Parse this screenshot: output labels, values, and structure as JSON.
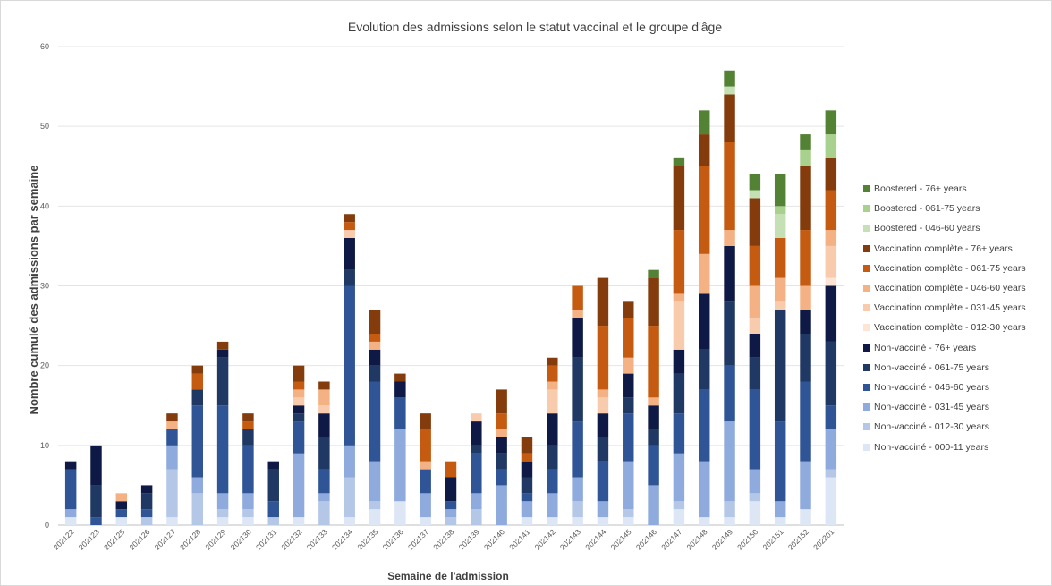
{
  "chart_data": {
    "type": "bar",
    "stacked": true,
    "title": "Evolution des admissions selon le statut vaccinal et le groupe d'âge",
    "xlabel": "Semaine de l'admission",
    "ylabel": "Nombre cumulé des admissions par semaine",
    "ylim": [
      0,
      60
    ],
    "yticks": [
      0,
      10,
      20,
      30,
      40,
      50,
      60
    ],
    "grid": true,
    "legend_position": "right",
    "categories": [
      "202122",
      "202123",
      "202125",
      "202126",
      "202127",
      "202128",
      "202129",
      "202130",
      "202131",
      "202132",
      "202133",
      "202134",
      "202135",
      "202136",
      "202137",
      "202138",
      "202139",
      "202140",
      "202141",
      "202142",
      "202143",
      "202144",
      "202145",
      "202146",
      "202147",
      "202148",
      "202149",
      "202150",
      "202151",
      "202152",
      "202201"
    ],
    "series": [
      {
        "name": "Non-vacciné - 000-11 years",
        "color": "#dce6f4",
        "values": [
          1,
          0,
          1,
          0,
          1,
          0,
          1,
          1,
          0,
          1,
          0,
          1,
          2,
          3,
          1,
          0,
          0,
          0,
          1,
          1,
          1,
          1,
          1,
          0,
          2,
          1,
          1,
          3,
          1,
          2,
          6
        ]
      },
      {
        "name": "Non-vacciné - 012-30 years",
        "color": "#b4c7e7",
        "values": [
          0,
          0,
          0,
          1,
          6,
          4,
          1,
          1,
          1,
          0,
          3,
          5,
          1,
          0,
          0,
          1,
          2,
          0,
          0,
          0,
          2,
          0,
          1,
          0,
          1,
          0,
          2,
          1,
          0,
          0,
          1
        ]
      },
      {
        "name": "Non-vacciné - 031-45 years",
        "color": "#8faadc",
        "values": [
          1,
          0,
          0,
          0,
          3,
          2,
          2,
          2,
          0,
          8,
          1,
          4,
          5,
          9,
          3,
          1,
          2,
          5,
          2,
          3,
          3,
          2,
          6,
          5,
          6,
          7,
          10,
          3,
          2,
          6,
          5
        ]
      },
      {
        "name": "Non-vacciné - 046-60 years",
        "color": "#2f5597",
        "values": [
          5,
          1,
          1,
          1,
          2,
          9,
          11,
          6,
          2,
          4,
          3,
          20,
          10,
          4,
          3,
          1,
          5,
          2,
          1,
          3,
          7,
          5,
          6,
          5,
          5,
          9,
          7,
          10,
          10,
          10,
          3
        ]
      },
      {
        "name": "Non-vacciné - 061-75 years",
        "color": "#203864",
        "values": [
          0,
          4,
          0,
          2,
          0,
          2,
          6,
          2,
          4,
          1,
          4,
          2,
          2,
          0,
          0,
          0,
          1,
          2,
          2,
          3,
          8,
          3,
          2,
          2,
          5,
          5,
          8,
          4,
          14,
          6,
          8
        ]
      },
      {
        "name": "Non-vacciné - 76+ years",
        "color": "#0e1a45",
        "values": [
          1,
          5,
          1,
          1,
          0,
          0,
          1,
          0,
          1,
          1,
          3,
          4,
          2,
          2,
          0,
          3,
          3,
          2,
          2,
          4,
          5,
          3,
          3,
          3,
          3,
          7,
          7,
          3,
          0,
          3,
          7
        ]
      },
      {
        "name": "Vaccination complète - 012-30 years",
        "color": "#fde4d4",
        "values": [
          0,
          0,
          0,
          0,
          0,
          0,
          0,
          0,
          0,
          0,
          0,
          0,
          0,
          0,
          0,
          0,
          0,
          0,
          0,
          0,
          0,
          0,
          0,
          0,
          0,
          0,
          0,
          0,
          0,
          0,
          1
        ]
      },
      {
        "name": "Vaccination complète - 031-45 years",
        "color": "#f8cbad",
        "values": [
          0,
          0,
          0,
          0,
          0,
          0,
          0,
          0,
          0,
          1,
          1,
          1,
          0,
          0,
          0,
          0,
          1,
          0,
          0,
          3,
          0,
          2,
          0,
          0,
          6,
          0,
          0,
          2,
          1,
          0,
          4
        ]
      },
      {
        "name": "Vaccination complète - 046-60 years",
        "color": "#f4b183",
        "values": [
          0,
          0,
          1,
          0,
          1,
          0,
          0,
          0,
          0,
          1,
          2,
          0,
          1,
          0,
          1,
          0,
          0,
          1,
          0,
          1,
          1,
          1,
          2,
          1,
          1,
          5,
          2,
          4,
          3,
          3,
          2
        ]
      },
      {
        "name": "Vaccination complète - 061-75 years",
        "color": "#c55a11",
        "values": [
          0,
          0,
          0,
          0,
          0,
          2,
          0,
          1,
          0,
          1,
          0,
          1,
          1,
          0,
          4,
          2,
          0,
          2,
          1,
          2,
          3,
          8,
          5,
          9,
          8,
          11,
          11,
          5,
          5,
          7,
          5
        ]
      },
      {
        "name": "Vaccination complète - 76+ years",
        "color": "#843c0c",
        "values": [
          0,
          0,
          0,
          0,
          1,
          1,
          1,
          1,
          0,
          2,
          1,
          1,
          3,
          1,
          2,
          0,
          0,
          3,
          2,
          1,
          0,
          6,
          2,
          6,
          8,
          4,
          6,
          6,
          0,
          8,
          4
        ]
      },
      {
        "name": "Boostered - 046-60 years",
        "color": "#c5e0b4",
        "values": [
          0,
          0,
          0,
          0,
          0,
          0,
          0,
          0,
          0,
          0,
          0,
          0,
          0,
          0,
          0,
          0,
          0,
          0,
          0,
          0,
          0,
          0,
          0,
          0,
          0,
          0,
          1,
          1,
          3,
          0,
          0
        ]
      },
      {
        "name": "Boostered - 061-75 years",
        "color": "#a9d18e",
        "values": [
          0,
          0,
          0,
          0,
          0,
          0,
          0,
          0,
          0,
          0,
          0,
          0,
          0,
          0,
          0,
          0,
          0,
          0,
          0,
          0,
          0,
          0,
          0,
          0,
          0,
          0,
          0,
          0,
          1,
          2,
          3
        ]
      },
      {
        "name": "Boostered - 76+ years",
        "color": "#548235",
        "values": [
          0,
          0,
          0,
          0,
          0,
          0,
          0,
          0,
          0,
          0,
          0,
          0,
          0,
          0,
          0,
          0,
          0,
          0,
          0,
          0,
          0,
          0,
          0,
          1,
          1,
          3,
          2,
          2,
          4,
          2,
          3
        ]
      }
    ],
    "legend_order": [
      "Boostered - 76+ years",
      "Boostered - 061-75 years",
      "Boostered - 046-60 years",
      "Vaccination complète - 76+ years",
      "Vaccination complète - 061-75 years",
      "Vaccination complète - 046-60 years",
      "Vaccination complète - 031-45 years",
      "Vaccination complète - 012-30 years",
      "Non-vacciné - 76+ years",
      "Non-vacciné - 061-75 years",
      "Non-vacciné - 046-60 years",
      "Non-vacciné - 031-45 years",
      "Non-vacciné - 012-30 years",
      "Non-vacciné - 000-11 years"
    ]
  }
}
